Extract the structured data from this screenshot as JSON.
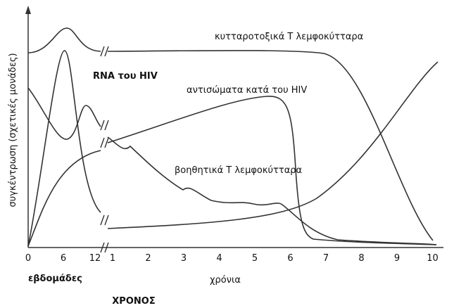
{
  "axes": {
    "y_label": "συγκέντρωση (σχετικές μονάδες)",
    "x_label": "ΧΡΟΝΟΣ",
    "weeks_label": "εβδομάδες",
    "years_label": "χρόνια",
    "week_ticks": [
      "0",
      "6",
      "12"
    ],
    "year_ticks": [
      "1",
      "2",
      "3",
      "4",
      "5",
      "6",
      "7",
      "8",
      "9",
      "10"
    ]
  },
  "curves": {
    "cytotoxic": "κυτταροτοξικά Τ λεμφοκύτταρα",
    "rna": "RNA του HIV",
    "antibodies": "αντισώματα κατά του HIV",
    "helper": "βοηθητικά Τ λεμφοκύτταρα"
  }
}
